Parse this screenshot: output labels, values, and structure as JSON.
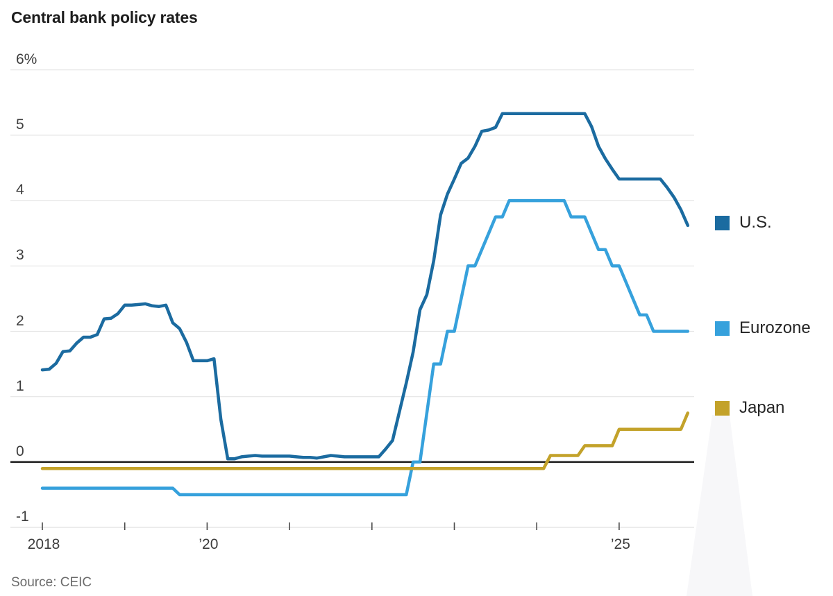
{
  "title": "Central bank policy rates",
  "source": "Source: CEIC",
  "legend": [
    {
      "label": "U.S.",
      "color": "#1b6ba0"
    },
    {
      "label": "Eurozone",
      "color": "#36a1dc"
    },
    {
      "label": "Japan",
      "color": "#c3a22a"
    }
  ],
  "axis": {
    "y_ticks": [
      {
        "label": "6%",
        "value": 6
      },
      {
        "label": "5",
        "value": 5
      },
      {
        "label": "4",
        "value": 4
      },
      {
        "label": "3",
        "value": 3
      },
      {
        "label": "2",
        "value": 2
      },
      {
        "label": "1",
        "value": 1
      },
      {
        "label": "0",
        "value": 0
      },
      {
        "label": "-1",
        "value": -1
      }
    ],
    "x_ticks": [
      {
        "year": 2018,
        "label": "2018"
      },
      {
        "year": 2019,
        "label": ""
      },
      {
        "year": 2020,
        "label": "’20"
      },
      {
        "year": 2021,
        "label": ""
      },
      {
        "year": 2022,
        "label": ""
      },
      {
        "year": 2023,
        "label": ""
      },
      {
        "year": 2024,
        "label": ""
      },
      {
        "year": 2025,
        "label": "’25"
      }
    ]
  },
  "chart_data": {
    "type": "line",
    "title": "Central bank policy rates",
    "ylabel": "percent",
    "ylim": [
      -1,
      6
    ],
    "grid": true,
    "legend_position": "right",
    "frequency": "monthly",
    "x_start": "2018-01",
    "x_end": "2025-11",
    "series": [
      {
        "name": "U.S.",
        "color": "#1b6ba0",
        "values": [
          1.41,
          1.42,
          1.51,
          1.69,
          1.7,
          1.82,
          1.91,
          1.91,
          1.95,
          2.19,
          2.2,
          2.27,
          2.4,
          2.4,
          2.41,
          2.42,
          2.39,
          2.38,
          2.4,
          2.13,
          2.04,
          1.83,
          1.55,
          1.55,
          1.55,
          1.58,
          0.65,
          0.05,
          0.05,
          0.08,
          0.09,
          0.1,
          0.09,
          0.09,
          0.09,
          0.09,
          0.09,
          0.08,
          0.07,
          0.07,
          0.06,
          0.08,
          0.1,
          0.09,
          0.08,
          0.08,
          0.08,
          0.08,
          0.08,
          0.08,
          0.2,
          0.33,
          0.77,
          1.21,
          1.68,
          2.33,
          2.56,
          3.08,
          3.78,
          4.1,
          4.33,
          4.57,
          4.65,
          4.83,
          5.06,
          5.08,
          5.12,
          5.33,
          5.33,
          5.33,
          5.33,
          5.33,
          5.33,
          5.33,
          5.33,
          5.33,
          5.33,
          5.33,
          5.33,
          5.33,
          5.13,
          4.83,
          4.64,
          4.48,
          4.33,
          4.33,
          4.33,
          4.33,
          4.33,
          4.33,
          4.33,
          4.2,
          4.05,
          3.86,
          3.62
        ]
      },
      {
        "name": "Eurozone",
        "color": "#36a1dc",
        "values": [
          -0.4,
          -0.4,
          -0.4,
          -0.4,
          -0.4,
          -0.4,
          -0.4,
          -0.4,
          -0.4,
          -0.4,
          -0.4,
          -0.4,
          -0.4,
          -0.4,
          -0.4,
          -0.4,
          -0.4,
          -0.4,
          -0.4,
          -0.4,
          -0.5,
          -0.5,
          -0.5,
          -0.5,
          -0.5,
          -0.5,
          -0.5,
          -0.5,
          -0.5,
          -0.5,
          -0.5,
          -0.5,
          -0.5,
          -0.5,
          -0.5,
          -0.5,
          -0.5,
          -0.5,
          -0.5,
          -0.5,
          -0.5,
          -0.5,
          -0.5,
          -0.5,
          -0.5,
          -0.5,
          -0.5,
          -0.5,
          -0.5,
          -0.5,
          -0.5,
          -0.5,
          -0.5,
          -0.5,
          0.0,
          0.0,
          0.75,
          1.5,
          1.5,
          2.0,
          2.0,
          2.5,
          3.0,
          3.0,
          3.25,
          3.5,
          3.75,
          3.75,
          4.0,
          4.0,
          4.0,
          4.0,
          4.0,
          4.0,
          4.0,
          4.0,
          4.0,
          3.75,
          3.75,
          3.75,
          3.5,
          3.25,
          3.25,
          3.0,
          3.0,
          2.75,
          2.5,
          2.25,
          2.25,
          2.0,
          2.0,
          2.0,
          2.0,
          2.0,
          2.0
        ]
      },
      {
        "name": "Japan",
        "color": "#c3a22a",
        "values": [
          -0.1,
          -0.1,
          -0.1,
          -0.1,
          -0.1,
          -0.1,
          -0.1,
          -0.1,
          -0.1,
          -0.1,
          -0.1,
          -0.1,
          -0.1,
          -0.1,
          -0.1,
          -0.1,
          -0.1,
          -0.1,
          -0.1,
          -0.1,
          -0.1,
          -0.1,
          -0.1,
          -0.1,
          -0.1,
          -0.1,
          -0.1,
          -0.1,
          -0.1,
          -0.1,
          -0.1,
          -0.1,
          -0.1,
          -0.1,
          -0.1,
          -0.1,
          -0.1,
          -0.1,
          -0.1,
          -0.1,
          -0.1,
          -0.1,
          -0.1,
          -0.1,
          -0.1,
          -0.1,
          -0.1,
          -0.1,
          -0.1,
          -0.1,
          -0.1,
          -0.1,
          -0.1,
          -0.1,
          -0.1,
          -0.1,
          -0.1,
          -0.1,
          -0.1,
          -0.1,
          -0.1,
          -0.1,
          -0.1,
          -0.1,
          -0.1,
          -0.1,
          -0.1,
          -0.1,
          -0.1,
          -0.1,
          -0.1,
          -0.1,
          -0.1,
          -0.1,
          0.1,
          0.1,
          0.1,
          0.1,
          0.1,
          0.25,
          0.25,
          0.25,
          0.25,
          0.25,
          0.5,
          0.5,
          0.5,
          0.5,
          0.5,
          0.5,
          0.5,
          0.5,
          0.5,
          0.5,
          0.75
        ]
      }
    ]
  },
  "colors": {
    "gridline": "#e4e4e4",
    "zero_line": "#1a1a1a",
    "tick": "#4a4a4a",
    "watermark": "#f7f7f9"
  }
}
